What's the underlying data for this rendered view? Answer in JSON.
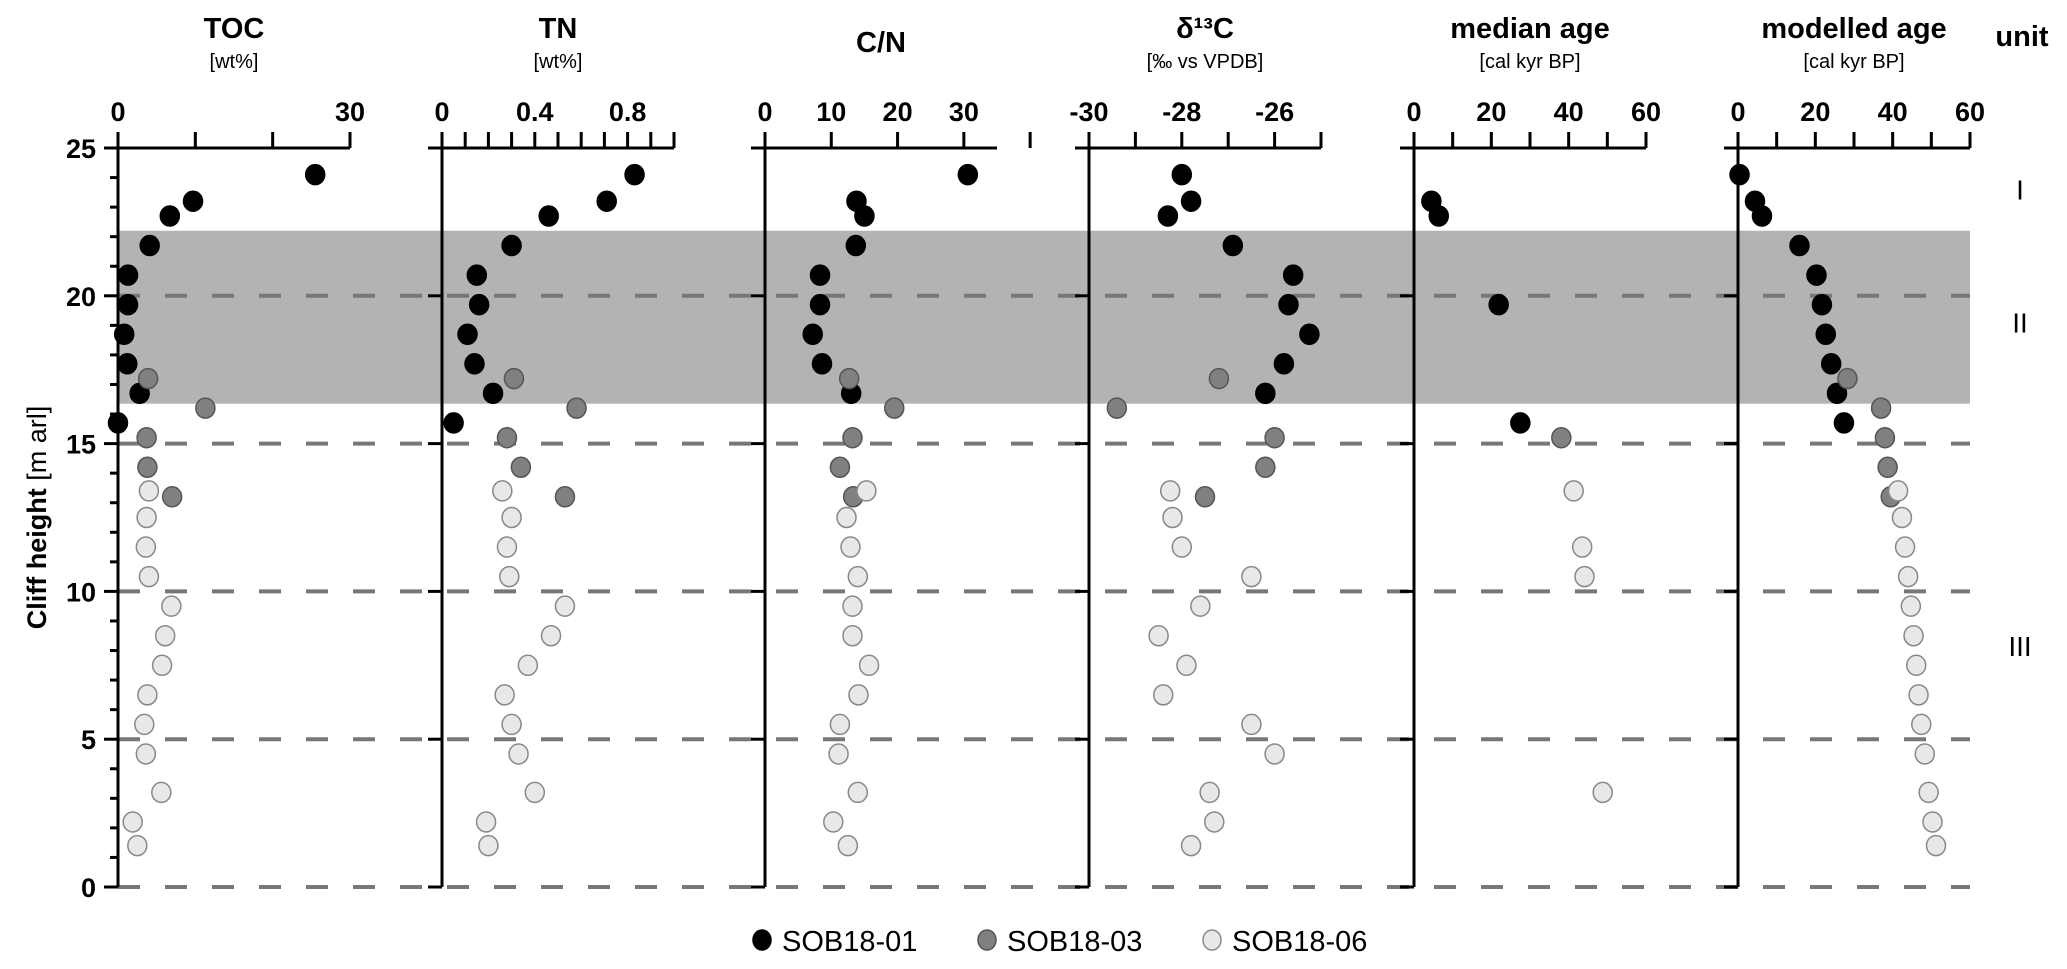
{
  "chart_data": {
    "type": "scatter",
    "y_axis": {
      "label": "Cliff height",
      "unit": "[m arl]",
      "range": [
        0,
        25
      ],
      "ticks": [
        0,
        5,
        10,
        15,
        20,
        25
      ],
      "minor_step": 1,
      "dashed_gridlines": [
        0,
        5,
        10,
        15,
        20
      ]
    },
    "shaded_band": {
      "from": 16.35,
      "to": 22.2,
      "color": "#b3b3b3"
    },
    "unit_column": {
      "title": "unit",
      "units": [
        {
          "label": "I",
          "height": 23.6
        },
        {
          "label": "II",
          "height": 19.1
        },
        {
          "label": "III",
          "height": 8.15
        }
      ]
    },
    "panels": [
      {
        "key": "toc",
        "title": "TOC",
        "unit": "[wt%]",
        "range": [
          0,
          30
        ],
        "tick_labels": [
          "0",
          "30"
        ],
        "tick_label_values": [
          0,
          30
        ],
        "tick_step": 10
      },
      {
        "key": "tn",
        "title": "TN",
        "unit": "[wt%]",
        "range": [
          0,
          1.0
        ],
        "tick_labels": [
          "0",
          "0.4",
          "0.8"
        ],
        "tick_label_values": [
          0,
          0.4,
          0.8
        ],
        "tick_step": 0.1
      },
      {
        "key": "cn",
        "title": "C/N",
        "unit": "",
        "range": [
          0,
          35
        ],
        "tick_labels": [
          "0",
          "10",
          "20",
          "30"
        ],
        "tick_label_values": [
          0,
          10,
          20,
          30
        ],
        "tick_step": 10
      },
      {
        "key": "d13c",
        "title": "δ¹³C",
        "unit": "[‰ vs VPDB]",
        "range": [
          -30,
          -25
        ],
        "tick_labels": [
          "-30",
          "-28",
          "-26"
        ],
        "tick_label_values": [
          -30,
          -28,
          -26
        ],
        "tick_step": 1
      },
      {
        "key": "median",
        "title": "median age",
        "unit": "[cal kyr BP]",
        "range": [
          0,
          60
        ],
        "tick_labels": [
          "0",
          "20",
          "40",
          "60"
        ],
        "tick_label_values": [
          0,
          20,
          40,
          60
        ],
        "tick_step": 10
      },
      {
        "key": "modelled",
        "title": "modelled age",
        "unit": "[cal kyr BP]",
        "range": [
          0,
          60
        ],
        "tick_labels": [
          "0",
          "20",
          "40",
          "60"
        ],
        "tick_label_values": [
          0,
          20,
          40,
          60
        ],
        "tick_step": 10
      }
    ],
    "series": [
      {
        "name": "SOB18-01",
        "fill": "#000000",
        "stroke": "#000000",
        "height": [
          24.1,
          23.2,
          22.7,
          21.7,
          20.7,
          19.7,
          18.7,
          17.7,
          16.7,
          15.7
        ],
        "toc": [
          25.5,
          9.7,
          6.7,
          4.1,
          1.3,
          1.3,
          0.8,
          1.2,
          2.8,
          0
        ],
        "tn": [
          0.83,
          0.71,
          0.46,
          0.3,
          0.15,
          0.16,
          0.11,
          0.14,
          0.22,
          0.05
        ],
        "cn": [
          30.6,
          13.8,
          15.0,
          13.7,
          8.3,
          8.3,
          7.2,
          8.6,
          13.0,
          null
        ],
        "d13c": [
          -28.0,
          -27.8,
          -28.3,
          -26.9,
          -25.6,
          -25.7,
          -25.25,
          -25.8,
          -26.2,
          null
        ],
        "median": [
          null,
          4.5,
          6.4,
          null,
          null,
          21.9,
          null,
          null,
          null,
          27.5
        ],
        "modelled": [
          0.4,
          4.4,
          6.2,
          15.9,
          20.3,
          21.7,
          22.7,
          24.1,
          25.6,
          27.4
        ]
      },
      {
        "name": "SOB18-03",
        "fill": "#808080",
        "stroke": "#555555",
        "height": [
          17.2,
          16.2,
          15.2,
          14.2,
          13.2
        ],
        "toc": [
          3.9,
          11.3,
          3.7,
          3.8,
          7.0
        ],
        "tn": [
          0.31,
          0.58,
          0.28,
          0.34,
          0.53
        ],
        "cn": [
          12.7,
          19.5,
          13.2,
          11.3,
          13.3
        ],
        "d13c": [
          -27.2,
          -29.4,
          -26.0,
          -26.2,
          -27.5
        ],
        "median": [
          null,
          null,
          38.1,
          null,
          null
        ],
        "modelled": [
          28.3,
          37.0,
          38.0,
          38.7,
          39.5
        ]
      },
      {
        "name": "SOB18-06",
        "fill": "#e8e8e8",
        "stroke": "#888888",
        "height": [
          13.4,
          12.5,
          11.5,
          10.5,
          9.5,
          8.5,
          7.5,
          6.5,
          5.5,
          4.5,
          3.2,
          2.2,
          1.4
        ],
        "toc": [
          4.0,
          3.7,
          3.6,
          4.0,
          6.9,
          6.1,
          5.7,
          3.8,
          3.4,
          3.6,
          5.6,
          1.9,
          2.5
        ],
        "tn": [
          0.26,
          0.3,
          0.28,
          0.29,
          0.53,
          0.47,
          0.37,
          0.27,
          0.3,
          0.33,
          0.4,
          0.19,
          0.2
        ],
        "cn": [
          15.3,
          12.3,
          12.9,
          14.0,
          13.2,
          13.2,
          15.7,
          14.1,
          11.3,
          11.1,
          14.0,
          10.3,
          12.5
        ],
        "d13c": [
          -28.25,
          -28.2,
          -28.0,
          -26.5,
          -27.6,
          -28.5,
          -27.9,
          -28.4,
          -26.5,
          -26.0,
          -27.4,
          -27.3,
          -27.8
        ],
        "median": [
          41.3,
          null,
          43.5,
          44.1,
          null,
          null,
          null,
          null,
          null,
          null,
          48.8,
          null,
          null
        ],
        "modelled": [
          41.4,
          42.4,
          43.2,
          44.0,
          44.7,
          45.4,
          46.1,
          46.7,
          47.4,
          48.3,
          49.3,
          50.3,
          51.2
        ]
      }
    ],
    "legend": {
      "placement": "bottom-center"
    }
  }
}
